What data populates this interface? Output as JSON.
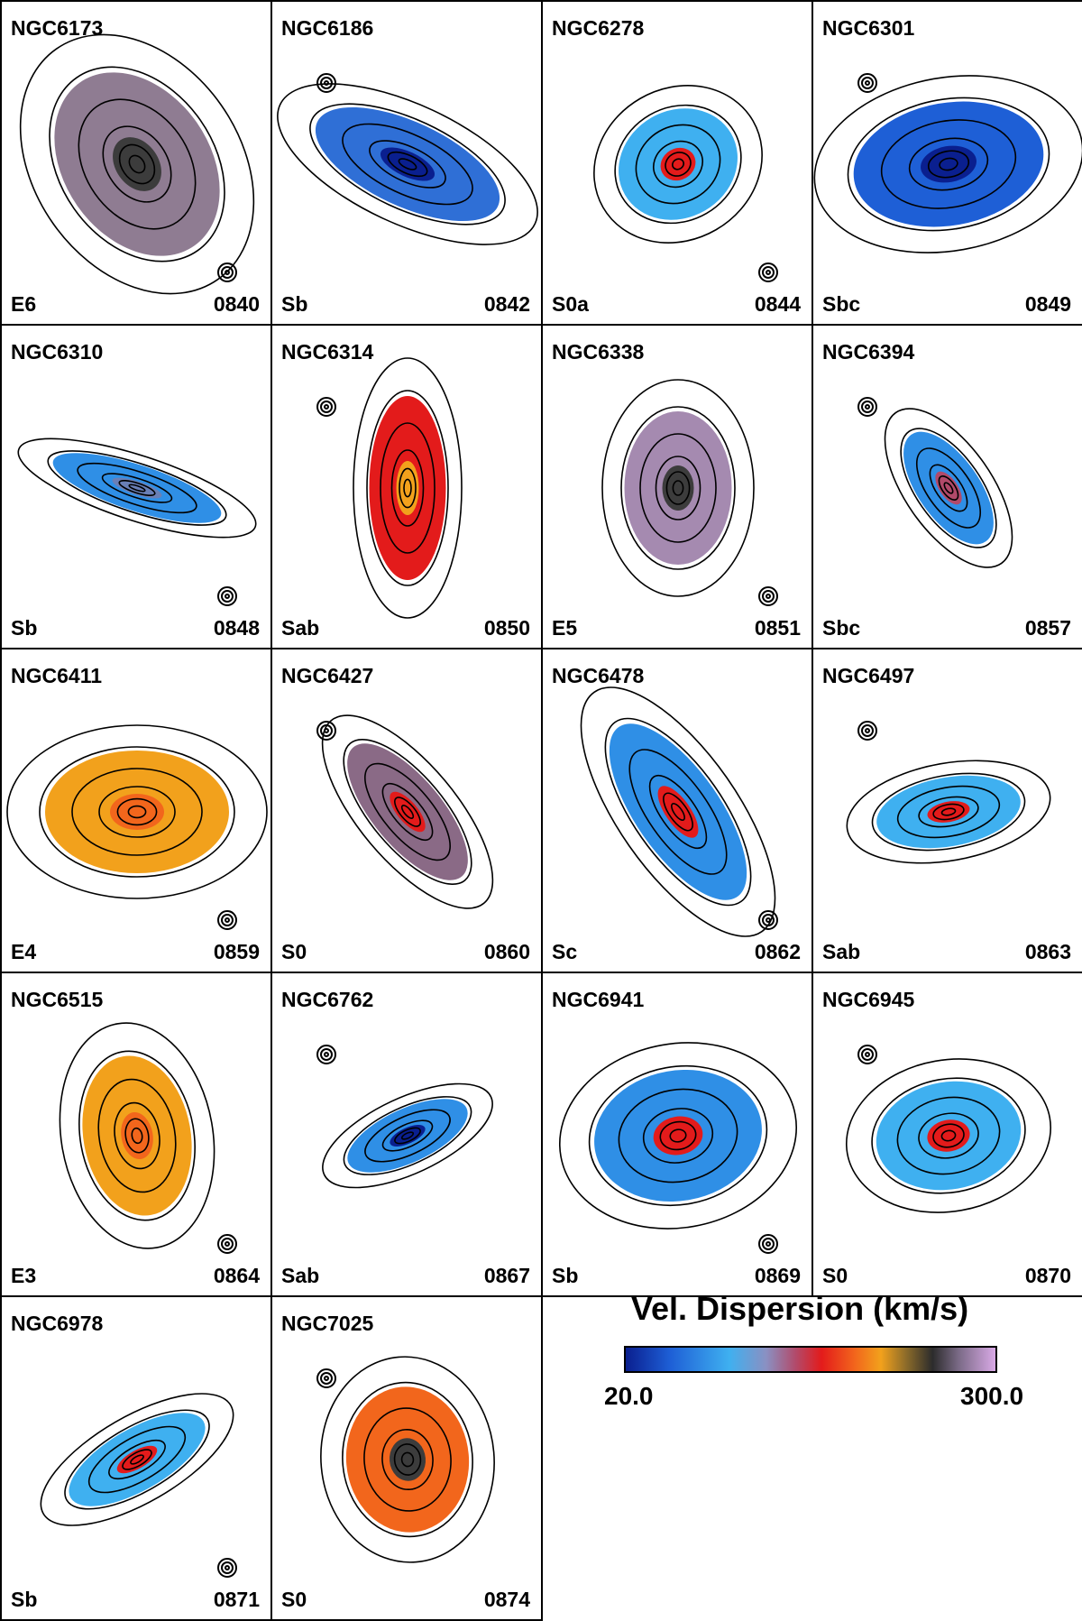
{
  "figure": {
    "colorbar": {
      "title": "Vel. Dispersion (km/s)",
      "min_label": "20.0",
      "max_label": "300.0",
      "min": 20.0,
      "max": 300.0
    },
    "panels": [
      {
        "name": "NGC6173",
        "type": "E6",
        "id": "0840",
        "color": "#8f7c92",
        "core": "#3c3c3c"
      },
      {
        "name": "NGC6186",
        "type": "Sb",
        "id": "0842",
        "color": "#2f6fd6",
        "core": "#0a1f8f"
      },
      {
        "name": "NGC6278",
        "type": "S0a",
        "id": "0844",
        "color": "#3fb0f0",
        "core": "#e31b1b"
      },
      {
        "name": "NGC6301",
        "type": "Sbc",
        "id": "0849",
        "color": "#1e5fd6",
        "core": "#0a1f8f"
      },
      {
        "name": "NGC6310",
        "type": "Sb",
        "id": "0848",
        "color": "#2f8fe6",
        "core": "#6a7fb6"
      },
      {
        "name": "NGC6314",
        "type": "Sab",
        "id": "0850",
        "color": "#e31b1b",
        "core": "#f2a11c"
      },
      {
        "name": "NGC6338",
        "type": "E5",
        "id": "0851",
        "color": "#a58ab0",
        "core": "#3c3c3c"
      },
      {
        "name": "NGC6394",
        "type": "Sbc",
        "id": "0857",
        "color": "#2f8fe6",
        "core": "#b24a6a"
      },
      {
        "name": "NGC6411",
        "type": "E4",
        "id": "0859",
        "color": "#f2a11c",
        "core": "#f2661c"
      },
      {
        "name": "NGC6427",
        "type": "S0",
        "id": "0860",
        "color": "#8a6a86",
        "core": "#e31b1b"
      },
      {
        "name": "NGC6478",
        "type": "Sc",
        "id": "0862",
        "color": "#2f8fe6",
        "core": "#e31b1b"
      },
      {
        "name": "NGC6497",
        "type": "Sab",
        "id": "0863",
        "color": "#3fb0f0",
        "core": "#e31b1b"
      },
      {
        "name": "NGC6515",
        "type": "E3",
        "id": "0864",
        "color": "#f2a11c",
        "core": "#f2661c"
      },
      {
        "name": "NGC6762",
        "type": "Sab",
        "id": "0867",
        "color": "#2f8fe6",
        "core": "#0a1f8f"
      },
      {
        "name": "NGC6941",
        "type": "Sb",
        "id": "0869",
        "color": "#2f8fe6",
        "core": "#e31b1b"
      },
      {
        "name": "NGC6945",
        "type": "S0",
        "id": "0870",
        "color": "#3fb0f0",
        "core": "#e31b1b"
      },
      {
        "name": "NGC6978",
        "type": "Sb",
        "id": "0871",
        "color": "#3fb0f0",
        "core": "#e31b1b"
      },
      {
        "name": "NGC7025",
        "type": "S0",
        "id": "0874",
        "color": "#f2661c",
        "core": "#3c3c3c"
      }
    ]
  }
}
